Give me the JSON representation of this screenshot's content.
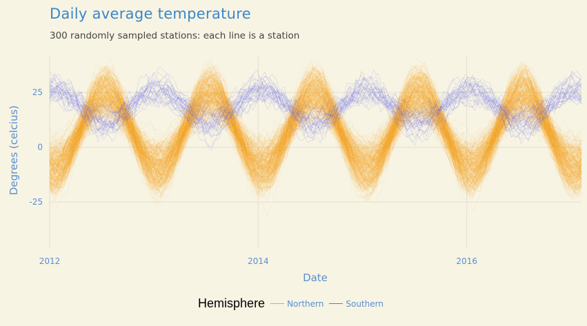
{
  "chart_data": {
    "type": "line",
    "title": "Daily average temperature",
    "subtitle": "300 randomly sampled stations: each line is a station",
    "xlabel": "Date",
    "ylabel": "Degrees (celcius)",
    "x_range": [
      2012.0,
      2017.1
    ],
    "ylim": [
      -46,
      42
    ],
    "x_ticks": [
      2012,
      2014,
      2016
    ],
    "x_tick_labels": [
      "2012",
      "2014",
      "2016"
    ],
    "y_ticks": [
      -25,
      0,
      25
    ],
    "y_tick_labels": [
      "-25",
      "0",
      "25"
    ],
    "legend_title": "Hemisphere",
    "legend_position": "bottom",
    "series": [
      {
        "name": "Northern",
        "color": "#f5a623",
        "line_count": 270,
        "approx_mean_summer_C": 22,
        "approx_mean_winter_C": -5,
        "approx_envelope_summer": [
          5,
          40
        ],
        "approx_envelope_winter": [
          -35,
          15
        ],
        "peak_month": "July"
      },
      {
        "name": "Southern",
        "color": "#6a6ae8",
        "line_count": 30,
        "approx_mean_summer_C": 25,
        "approx_mean_winter_C": 12,
        "approx_envelope_summer": [
          15,
          34
        ],
        "approx_envelope_winter": [
          5,
          30
        ],
        "peak_month": "January"
      }
    ]
  }
}
